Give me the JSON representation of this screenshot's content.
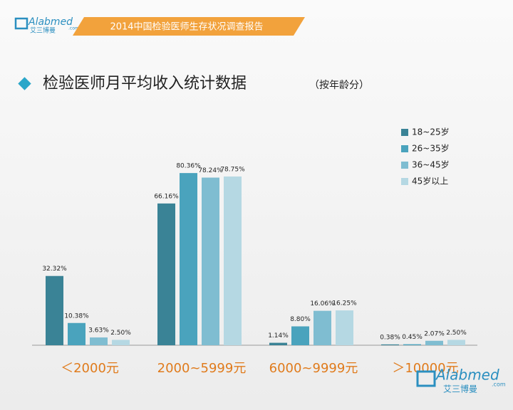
{
  "logo": {
    "name": "Alabmed",
    "domain": ".com",
    "chinese": "艾三博曼"
  },
  "banner": "2014中国检验医师生存状况调查报告",
  "chart_data": {
    "type": "bar",
    "title": "检验医师月平均收入统计数据",
    "subtitle": "（按年龄分）",
    "categories": [
      "＜2000元",
      "2000~5999元",
      "6000~9999元",
      "＞10000元"
    ],
    "series": [
      {
        "name": "18~25岁",
        "color": "#3a8396",
        "values": [
          32.32,
          66.16,
          1.14,
          0.38
        ],
        "value_labels": [
          "32.32%",
          "66.16%",
          "1.14%",
          "0.38%"
        ]
      },
      {
        "name": "26~35岁",
        "color": "#4aa3bd",
        "values": [
          10.38,
          80.36,
          8.8,
          0.45
        ],
        "value_labels": [
          "10.38%",
          "80.36%",
          "8.80%",
          "0.45%"
        ]
      },
      {
        "name": "36~45岁",
        "color": "#7fbdd1",
        "values": [
          3.63,
          78.24,
          16.06,
          2.07
        ],
        "value_labels": [
          "3.63%",
          "78.24%",
          "16.06%",
          "2.07%"
        ]
      },
      {
        "name": "45岁以上",
        "color": "#b5d8e3",
        "values": [
          2.5,
          78.75,
          16.25,
          2.5
        ],
        "value_labels": [
          "2.50%",
          "78.75%",
          "16.25%",
          "2.50%"
        ]
      }
    ],
    "legend": "top-right"
  }
}
